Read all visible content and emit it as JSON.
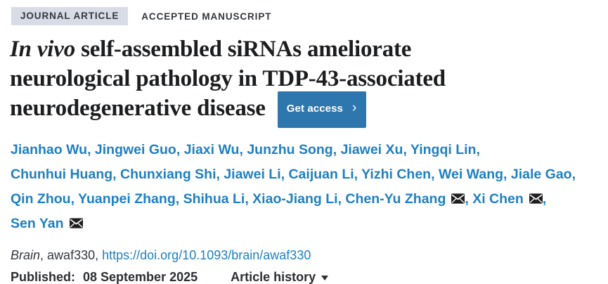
{
  "header": {
    "badge": "JOURNAL ARTICLE",
    "manuscript_status": "ACCEPTED MANUSCRIPT"
  },
  "title": {
    "italic": "In vivo",
    "rest": " self-assembled siRNAs ameliorate neurological pathology in TDP-43-associated neurodegenerative disease",
    "get_access_label": "Get access",
    "chevron": "›"
  },
  "authors": {
    "separator": ", ",
    "list": [
      {
        "name": "Jianhao Wu",
        "corresponding": false
      },
      {
        "name": "Jingwei Guo",
        "corresponding": false
      },
      {
        "name": "Jiaxi Wu",
        "corresponding": false
      },
      {
        "name": "Junzhu Song",
        "corresponding": false
      },
      {
        "name": "Jiawei Xu",
        "corresponding": false
      },
      {
        "name": "Yingqi Lin",
        "corresponding": false
      },
      {
        "name": "Chunhui Huang",
        "corresponding": false
      },
      {
        "name": "Chunxiang Shi",
        "corresponding": false
      },
      {
        "name": "Jiawei Li",
        "corresponding": false
      },
      {
        "name": "Caijuan Li",
        "corresponding": false
      },
      {
        "name": "Yizhi Chen",
        "corresponding": false
      },
      {
        "name": "Wei Wang",
        "corresponding": false
      },
      {
        "name": "Jiale Gao",
        "corresponding": false
      },
      {
        "name": "Qin Zhou",
        "corresponding": false
      },
      {
        "name": "Yuanpei Zhang",
        "corresponding": false
      },
      {
        "name": "Shihua Li",
        "corresponding": false
      },
      {
        "name": "Xiao-Jiang Li",
        "corresponding": false
      },
      {
        "name": "Chen-Yu Zhang",
        "corresponding": true
      },
      {
        "name": "Xi Chen",
        "corresponding": true
      },
      {
        "name": "Sen Yan",
        "corresponding": true
      }
    ]
  },
  "citation": {
    "journal": "Brain",
    "separator": ", ",
    "article_id": "awaf330",
    "doi_label": "https://doi.org/10.1093/brain/awaf330"
  },
  "published": {
    "label": "Published:",
    "date": "08 September 2025",
    "article_history_label": "Article history"
  },
  "colors": {
    "link_blue": "#2080c1",
    "button_blue": "#2e76ae",
    "badge_bg": "#d7dce7",
    "icon_dark": "#1e1e1e"
  }
}
